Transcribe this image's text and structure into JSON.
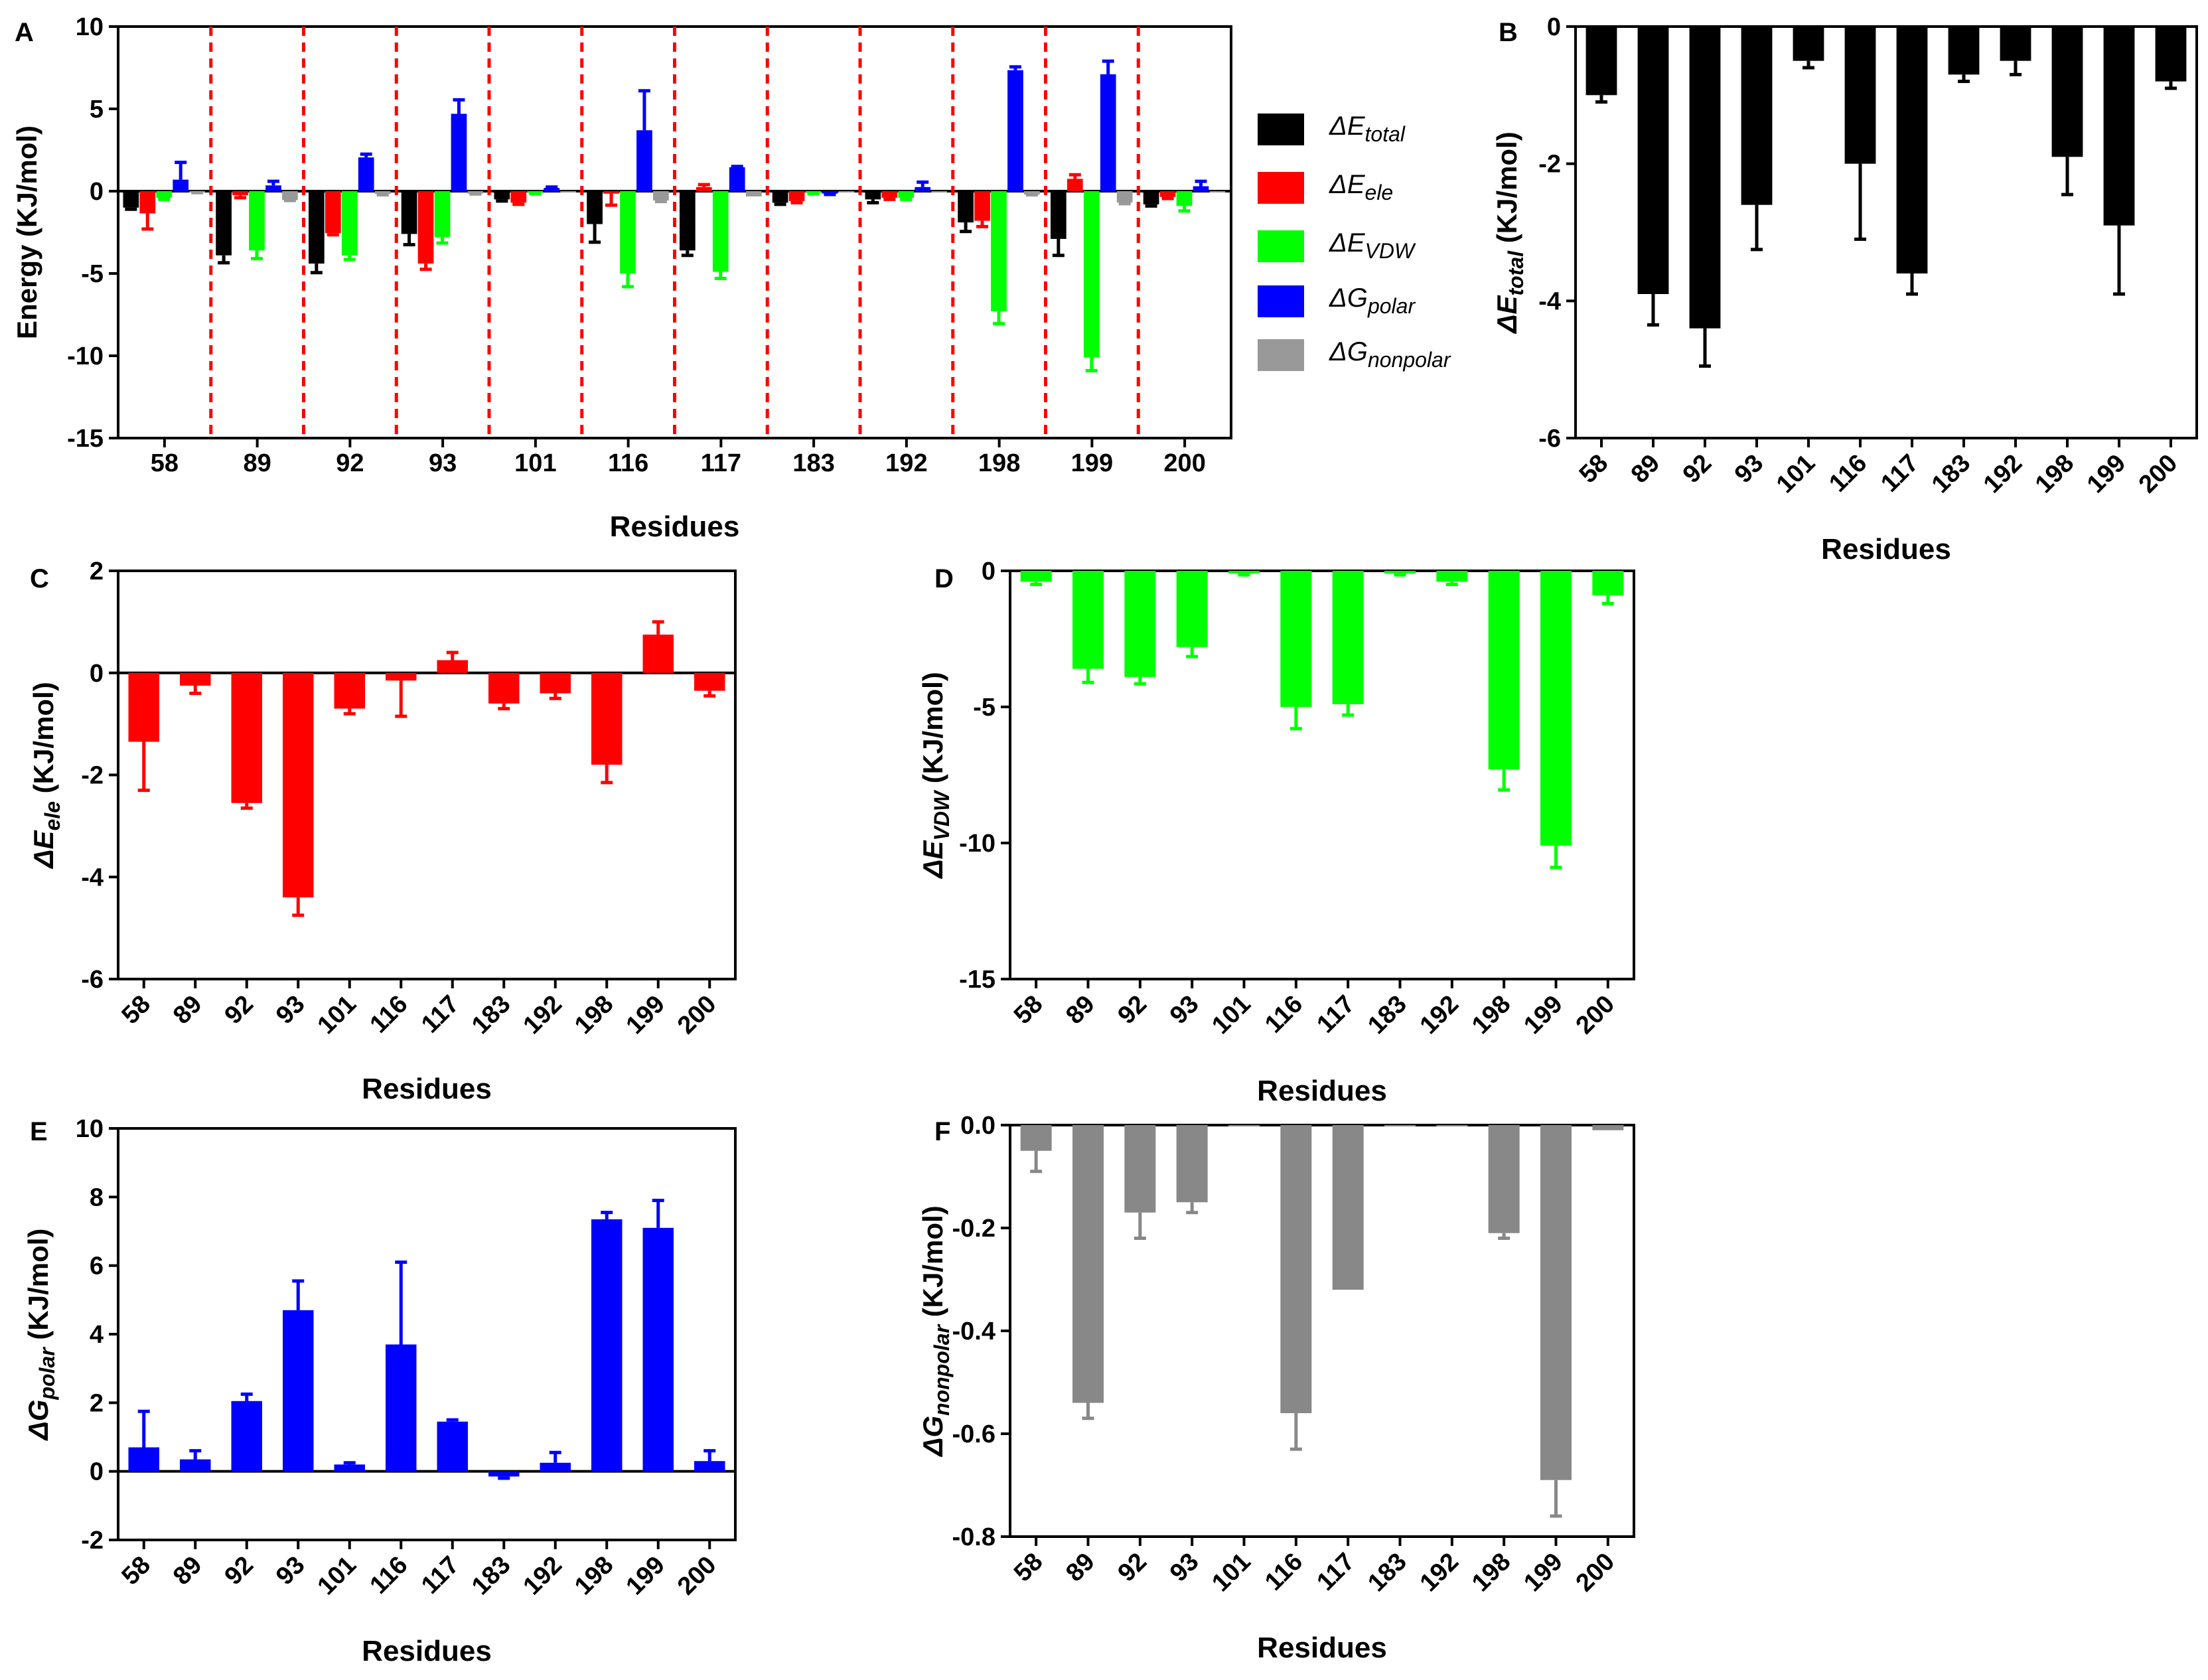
{
  "figure": {
    "residues": [
      "58",
      "89",
      "92",
      "93",
      "101",
      "116",
      "117",
      "183",
      "192",
      "198",
      "199",
      "200"
    ]
  },
  "legend": [
    {
      "key": "total",
      "symbol": "ΔE",
      "sub": "total",
      "color": "#000000"
    },
    {
      "key": "ele",
      "symbol": "ΔE",
      "sub": "ele",
      "color": "#ff0000"
    },
    {
      "key": "vdw",
      "symbol": "ΔE",
      "sub": "VDW",
      "color": "#00ff00"
    },
    {
      "key": "polar",
      "symbol": "ΔG",
      "sub": "polar",
      "color": "#0000ff"
    },
    {
      "key": "nonpolar",
      "symbol": "ΔG",
      "sub": "nonpolar",
      "color": "#999999"
    }
  ],
  "chart_data": [
    {
      "panel": "A",
      "type": "bar",
      "grouped": true,
      "categories": [
        "58",
        "89",
        "92",
        "93",
        "101",
        "116",
        "117",
        "183",
        "192",
        "198",
        "199",
        "200"
      ],
      "ylim": [
        -15,
        10
      ],
      "yticks": [
        -15,
        -10,
        -5,
        0,
        5,
        10
      ],
      "ylabel": "Energy (KJ/mol)",
      "xlabel": "Residues",
      "separators": true,
      "series": [
        {
          "name": "ΔE_total",
          "color": "#000000",
          "values": [
            -1.0,
            -3.9,
            -4.4,
            -2.6,
            -0.5,
            -2.0,
            -3.6,
            -0.7,
            -0.5,
            -1.9,
            -2.9,
            -0.8
          ],
          "errors": [
            0.1,
            0.45,
            0.55,
            0.65,
            0.1,
            1.1,
            0.3,
            0.1,
            0.2,
            0.55,
            1.0,
            0.1
          ]
        },
        {
          "name": "ΔE_ele",
          "color": "#ff0000",
          "values": [
            -1.35,
            -0.25,
            -2.55,
            -4.4,
            -0.7,
            -0.15,
            0.25,
            -0.6,
            -0.4,
            -1.8,
            0.75,
            -0.35
          ],
          "errors": [
            0.95,
            0.15,
            0.1,
            0.35,
            0.1,
            0.7,
            0.15,
            0.1,
            0.1,
            0.35,
            0.25,
            0.1
          ]
        },
        {
          "name": "ΔE_VDW",
          "color": "#00ff00",
          "values": [
            -0.4,
            -3.6,
            -3.9,
            -2.8,
            -0.1,
            -5.0,
            -4.9,
            -0.1,
            -0.4,
            -7.3,
            -10.1,
            -0.9
          ],
          "errors": [
            0.1,
            0.5,
            0.25,
            0.35,
            0.05,
            0.8,
            0.4,
            0.05,
            0.1,
            0.75,
            0.8,
            0.3
          ]
        },
        {
          "name": "ΔG_polar",
          "color": "#0000ff",
          "values": [
            0.7,
            0.35,
            2.05,
            4.7,
            0.2,
            3.7,
            1.45,
            -0.15,
            0.25,
            7.35,
            7.1,
            0.3
          ],
          "errors": [
            1.05,
            0.25,
            0.2,
            0.85,
            0.05,
            2.4,
            0.05,
            0.05,
            0.3,
            0.2,
            0.8,
            0.3
          ]
        },
        {
          "name": "ΔG_nonpolar",
          "color": "#999999",
          "values": [
            -0.05,
            -0.54,
            -0.17,
            -0.15,
            0,
            -0.56,
            -0.32,
            0,
            0,
            -0.21,
            -0.69,
            -0.01
          ],
          "errors": [
            0.04,
            0.03,
            0.05,
            0.02,
            0,
            0.07,
            0.0,
            0,
            0,
            0.01,
            0.07,
            0.0
          ]
        }
      ]
    },
    {
      "panel": "B",
      "type": "bar",
      "categories": [
        "58",
        "89",
        "92",
        "93",
        "101",
        "116",
        "117",
        "183",
        "192",
        "198",
        "199",
        "200"
      ],
      "ylim": [
        -6,
        0
      ],
      "yticks": [
        -6,
        -4,
        -2,
        0
      ],
      "ylabel_symbol": "ΔE",
      "ylabel_sub": "total",
      "ylabel_units": "(KJ/mol)",
      "xlabel": "Residues",
      "color": "#000000",
      "values": [
        -1.0,
        -3.9,
        -4.4,
        -2.6,
        -0.5,
        -2.0,
        -3.6,
        -0.7,
        -0.5,
        -1.9,
        -2.9,
        -0.8
      ],
      "errors": [
        0.1,
        0.45,
        0.55,
        0.65,
        0.1,
        1.1,
        0.3,
        0.1,
        0.2,
        0.55,
        1.0,
        0.1
      ]
    },
    {
      "panel": "C",
      "type": "bar",
      "categories": [
        "58",
        "89",
        "92",
        "93",
        "101",
        "116",
        "117",
        "183",
        "192",
        "198",
        "199",
        "200"
      ],
      "ylim": [
        -6,
        2
      ],
      "yticks": [
        -6,
        -4,
        -2,
        0,
        2
      ],
      "ylabel_symbol": "ΔE",
      "ylabel_sub": "ele",
      "ylabel_units": "(KJ/mol)",
      "xlabel": "Residues",
      "color": "#ff0000",
      "values": [
        -1.35,
        -0.25,
        -2.55,
        -4.4,
        -0.7,
        -0.15,
        0.25,
        -0.6,
        -0.4,
        -1.8,
        0.75,
        -0.35
      ],
      "errors": [
        0.95,
        0.15,
        0.1,
        0.35,
        0.1,
        0.7,
        0.15,
        0.1,
        0.1,
        0.35,
        0.25,
        0.1
      ]
    },
    {
      "panel": "D",
      "type": "bar",
      "categories": [
        "58",
        "89",
        "92",
        "93",
        "101",
        "116",
        "117",
        "183",
        "192",
        "198",
        "199",
        "200"
      ],
      "ylim": [
        -15,
        0
      ],
      "yticks": [
        -15,
        -10,
        -5,
        0
      ],
      "ylabel_symbol": "ΔE",
      "ylabel_sub": "VDW",
      "ylabel_units": "(KJ/mol)",
      "xlabel": "Residues",
      "color": "#00ff00",
      "values": [
        -0.4,
        -3.6,
        -3.9,
        -2.8,
        -0.1,
        -5.0,
        -4.9,
        -0.1,
        -0.4,
        -7.3,
        -10.1,
        -0.9
      ],
      "errors": [
        0.1,
        0.5,
        0.25,
        0.35,
        0.05,
        0.8,
        0.4,
        0.05,
        0.1,
        0.75,
        0.8,
        0.3
      ]
    },
    {
      "panel": "E",
      "type": "bar",
      "categories": [
        "58",
        "89",
        "92",
        "93",
        "101",
        "116",
        "117",
        "183",
        "192",
        "198",
        "199",
        "200"
      ],
      "ylim": [
        -2,
        10
      ],
      "yticks": [
        -2,
        0,
        2,
        4,
        6,
        8,
        10
      ],
      "ylabel_symbol": "ΔG",
      "ylabel_sub": "polar",
      "ylabel_units": "(KJ/mol)",
      "xlabel": "Residues",
      "color": "#0000ff",
      "values": [
        0.7,
        0.35,
        2.05,
        4.7,
        0.2,
        3.7,
        1.45,
        -0.15,
        0.25,
        7.35,
        7.1,
        0.3
      ],
      "errors": [
        1.05,
        0.25,
        0.2,
        0.85,
        0.05,
        2.4,
        0.05,
        0.05,
        0.3,
        0.2,
        0.8,
        0.3
      ]
    },
    {
      "panel": "F",
      "type": "bar",
      "categories": [
        "58",
        "89",
        "92",
        "93",
        "101",
        "116",
        "117",
        "183",
        "192",
        "198",
        "199",
        "200"
      ],
      "ylim": [
        -0.8,
        0
      ],
      "yticks": [
        -0.8,
        -0.6,
        -0.4,
        -0.2,
        0.0
      ],
      "ytick_decimals": 1,
      "ylabel_symbol": "ΔG",
      "ylabel_sub": "nonpolar",
      "ylabel_units": "(KJ/mol)",
      "xlabel": "Residues",
      "color": "#888888",
      "values": [
        -0.05,
        -0.54,
        -0.17,
        -0.15,
        0,
        -0.56,
        -0.32,
        0,
        0,
        -0.21,
        -0.69,
        -0.01
      ],
      "errors": [
        0.04,
        0.03,
        0.05,
        0.02,
        0,
        0.07,
        0.0,
        0,
        0,
        0.01,
        0.07,
        0.0
      ]
    }
  ]
}
